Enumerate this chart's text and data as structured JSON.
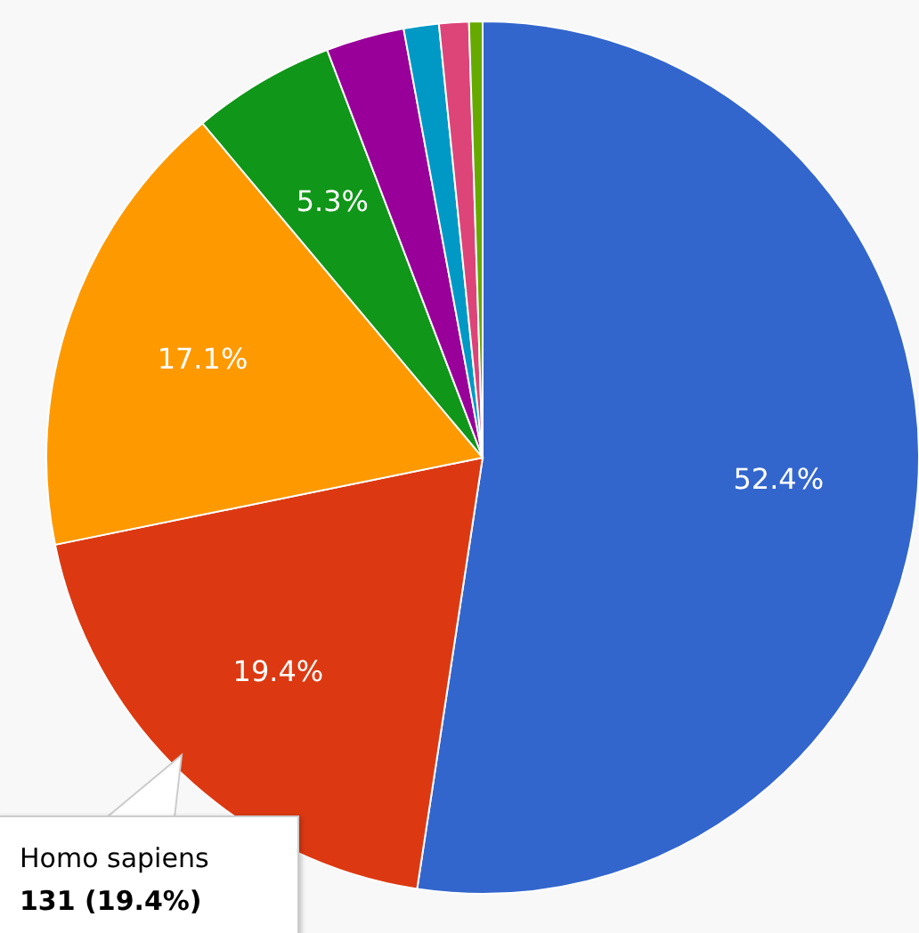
{
  "chart_data": {
    "type": "pie",
    "categories": [
      null,
      "Homo sapiens",
      null,
      null,
      null,
      null,
      null,
      null
    ],
    "values": [
      52.4,
      19.4,
      17.1,
      5.3,
      2.9,
      1.3,
      1.1,
      0.5
    ],
    "colors": [
      "#3366cc",
      "#dc3912",
      "#ff9900",
      "#109618",
      "#990099",
      "#0099c6",
      "#dd4477",
      "#66aa00"
    ],
    "value_labels": [
      "52.4%",
      "19.4%",
      "17.1%",
      "5.3%",
      null,
      null,
      null,
      null
    ],
    "annotations": [
      "131 (19.4%)"
    ]
  }
}
